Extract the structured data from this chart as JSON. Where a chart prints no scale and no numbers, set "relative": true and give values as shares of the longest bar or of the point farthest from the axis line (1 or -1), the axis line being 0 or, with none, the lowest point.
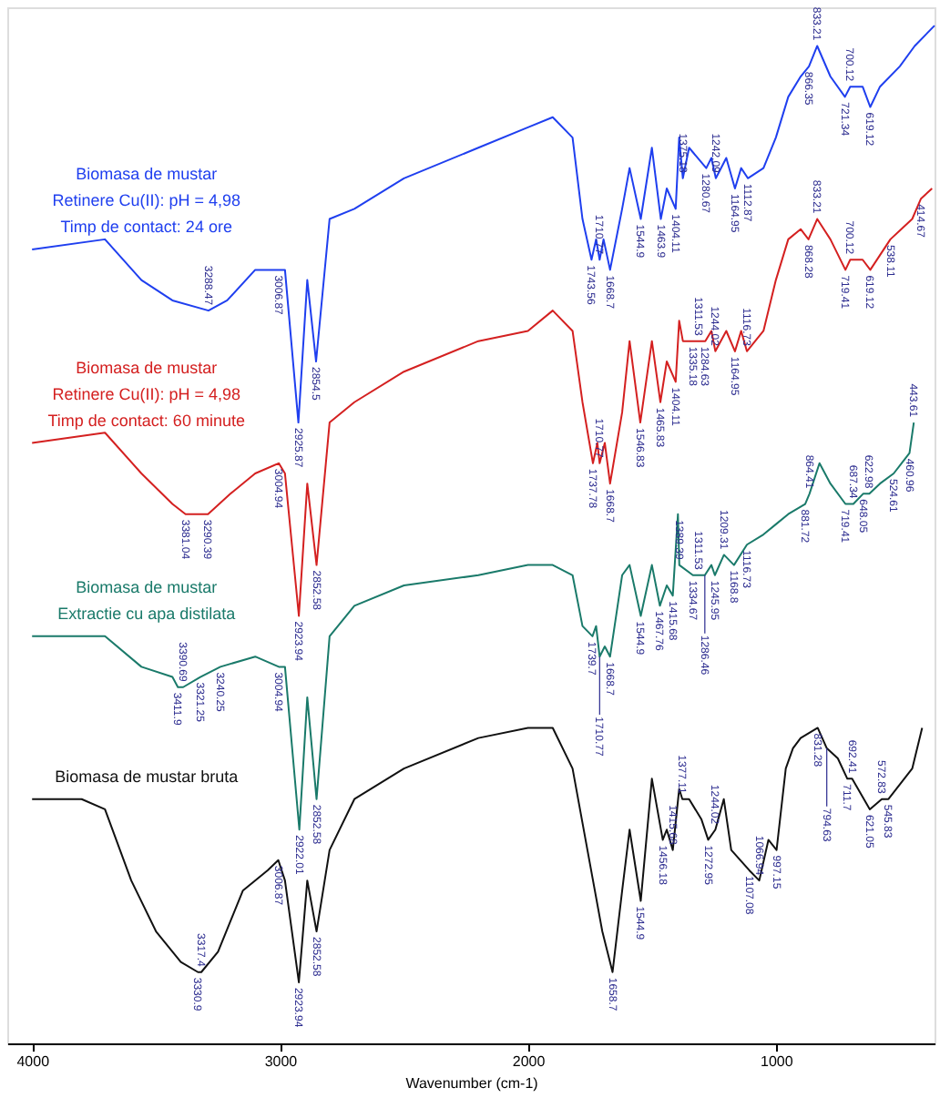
{
  "chart_data": {
    "type": "line",
    "relative": true,
    "xlabel": "Wavenumber (cm-1)",
    "xlim": [
      4100,
      360
    ],
    "xticks": [
      4000,
      3000,
      2000,
      1000
    ],
    "grid": false,
    "legend": false,
    "marker": "none",
    "line_style": "solid",
    "series": [
      {
        "name": "Biomasa de mustar\nRetinere Cu(II): pH = 4,98\nTimp de contact: 24 ore",
        "color": "#1f3fef",
        "x": [
          4000,
          3706,
          3559,
          3434,
          3288.47,
          3213,
          3100,
          3006.87,
          2980,
          2925.87,
          2890,
          2854.5,
          2800,
          2700,
          2500,
          2200,
          2000,
          1900,
          1820,
          1780,
          1743.56,
          1725,
          1710.77,
          1695,
          1668.7,
          1620,
          1590,
          1544.9,
          1500,
          1463.9,
          1440,
          1404.11,
          1390,
          1375.18,
          1350,
          1280.67,
          1260,
          1242.09,
          1200,
          1164.95,
          1140,
          1112.87,
          1050,
          1000,
          950,
          900,
          866.35,
          833.21,
          780,
          721.34,
          700.12,
          650,
          619.12,
          580,
          500,
          440,
          360
        ],
        "values": [
          0.78,
          0.79,
          0.75,
          0.73,
          0.72,
          0.73,
          0.76,
          0.76,
          0.76,
          0.61,
          0.75,
          0.67,
          0.81,
          0.82,
          0.85,
          0.88,
          0.9,
          0.91,
          0.89,
          0.81,
          0.77,
          0.79,
          0.77,
          0.79,
          0.76,
          0.82,
          0.86,
          0.81,
          0.88,
          0.81,
          0.84,
          0.82,
          0.89,
          0.85,
          0.88,
          0.86,
          0.87,
          0.85,
          0.87,
          0.84,
          0.86,
          0.85,
          0.86,
          0.89,
          0.93,
          0.95,
          0.96,
          0.98,
          0.95,
          0.93,
          0.94,
          0.94,
          0.92,
          0.94,
          0.96,
          0.98,
          1.0
        ]
      },
      {
        "name": "Biomasa de mustar\nRetinere Cu(II): pH = 4,98\nTimp de contact: 60 minute",
        "color": "#d42020",
        "x": [
          4000,
          3706,
          3559,
          3434,
          3381.04,
          3290.39,
          3200,
          3100,
          3004.94,
          2980,
          2923.94,
          2890,
          2852.58,
          2800,
          2700,
          2500,
          2200,
          2000,
          1900,
          1820,
          1780,
          1737.78,
          1720,
          1710.77,
          1690,
          1668.7,
          1620,
          1590,
          1546.83,
          1500,
          1465.83,
          1440,
          1404.11,
          1390,
          1375,
          1335.18,
          1311.53,
          1284.63,
          1260,
          1244.02,
          1200,
          1164.95,
          1140,
          1116.73,
          1050,
          1000,
          950,
          900,
          868.28,
          833.21,
          780,
          719.41,
          700.12,
          650,
          619.12,
          538.11,
          450,
          414.67,
          370
        ],
        "values": [
          0.59,
          0.6,
          0.56,
          0.53,
          0.52,
          0.52,
          0.54,
          0.56,
          0.57,
          0.56,
          0.42,
          0.55,
          0.47,
          0.61,
          0.63,
          0.66,
          0.69,
          0.7,
          0.72,
          0.7,
          0.63,
          0.57,
          0.59,
          0.57,
          0.59,
          0.55,
          0.62,
          0.69,
          0.61,
          0.69,
          0.63,
          0.67,
          0.65,
          0.71,
          0.69,
          0.69,
          0.69,
          0.69,
          0.7,
          0.68,
          0.7,
          0.68,
          0.7,
          0.68,
          0.7,
          0.75,
          0.79,
          0.8,
          0.79,
          0.81,
          0.79,
          0.76,
          0.77,
          0.77,
          0.76,
          0.79,
          0.81,
          0.83,
          0.84
        ]
      },
      {
        "name": "Biomasa de mustar\nExtractie cu apa distilata",
        "color": "#1a7a6a",
        "x": [
          4000,
          3706,
          3559,
          3434,
          3411.9,
          3390.69,
          3321.25,
          3240.25,
          3100,
          3004.94,
          2980,
          2922.01,
          2890,
          2852.58,
          2800,
          2700,
          2500,
          2200,
          2000,
          1900,
          1820,
          1780,
          1739.7,
          1725,
          1710.77,
          1690,
          1668.7,
          1620,
          1590,
          1544.9,
          1500,
          1467.76,
          1440,
          1415.68,
          1395,
          1389.39,
          1334.67,
          1311.53,
          1286.46,
          1260,
          1245.95,
          1209.31,
          1168.8,
          1116.73,
          1050,
          1000,
          950,
          881.72,
          864.41,
          824,
          780,
          719.41,
          687.34,
          648.05,
          622.98,
          580,
          524.61,
          460.96,
          443.61
        ],
        "values": [
          0.4,
          0.4,
          0.37,
          0.36,
          0.35,
          0.35,
          0.36,
          0.37,
          0.38,
          0.37,
          0.37,
          0.21,
          0.34,
          0.24,
          0.4,
          0.43,
          0.45,
          0.46,
          0.47,
          0.47,
          0.46,
          0.41,
          0.4,
          0.41,
          0.38,
          0.39,
          0.38,
          0.46,
          0.47,
          0.42,
          0.47,
          0.43,
          0.45,
          0.44,
          0.52,
          0.47,
          0.46,
          0.46,
          0.46,
          0.47,
          0.46,
          0.48,
          0.47,
          0.49,
          0.5,
          0.51,
          0.52,
          0.53,
          0.54,
          0.57,
          0.55,
          0.53,
          0.53,
          0.54,
          0.54,
          0.55,
          0.56,
          0.58,
          0.61
        ]
      },
      {
        "name": "Biomasa de mustar bruta",
        "color": "#111111",
        "x": [
          4000,
          3800,
          3706,
          3600,
          3500,
          3400,
          3330.9,
          3317.4,
          3250,
          3150,
          3050,
          3006.87,
          2980,
          2923.94,
          2890,
          2852.58,
          2800,
          2700,
          2500,
          2200,
          2000,
          1900,
          1820,
          1760,
          1700,
          1658.7,
          1620,
          1590,
          1544.9,
          1500,
          1456.18,
          1440,
          1415.68,
          1390,
          1377.11,
          1350,
          1300,
          1272.95,
          1244.02,
          1210,
          1180,
          1107.08,
          1066.94,
          1030,
          997.15,
          960,
          931,
          900,
          831.28,
          794.63,
          750,
          711.7,
          692.41,
          621.05,
          572.83,
          545.83,
          450,
          410
        ],
        "values": [
          0.24,
          0.24,
          0.23,
          0.16,
          0.11,
          0.08,
          0.07,
          0.07,
          0.09,
          0.15,
          0.17,
          0.18,
          0.16,
          0.06,
          0.16,
          0.11,
          0.19,
          0.24,
          0.27,
          0.3,
          0.31,
          0.31,
          0.27,
          0.19,
          0.11,
          0.07,
          0.15,
          0.21,
          0.14,
          0.26,
          0.2,
          0.21,
          0.19,
          0.25,
          0.24,
          0.24,
          0.22,
          0.2,
          0.21,
          0.24,
          0.19,
          0.17,
          0.16,
          0.2,
          0.19,
          0.27,
          0.29,
          0.3,
          0.31,
          0.29,
          0.28,
          0.26,
          0.26,
          0.23,
          0.24,
          0.24,
          0.27,
          0.31
        ]
      }
    ],
    "annotations": [
      {
        "text": "3288.47",
        "x": 3288.47,
        "y": 0.72
      },
      {
        "text": "3006.87",
        "x": 3006.87,
        "y": 0.76
      },
      {
        "text": "2925.87",
        "x": 2925.87,
        "y": 0.61
      },
      {
        "text": "2854.5",
        "x": 2854.5,
        "y": 0.67
      },
      {
        "text": "1743.56",
        "x": 1743.56,
        "y": 0.77
      },
      {
        "text": "1710.77",
        "x": 1710.77,
        "y": 0.77
      },
      {
        "text": "1668.7",
        "x": 1668.7,
        "y": 0.76
      },
      {
        "text": "1544.9",
        "x": 1544.9,
        "y": 0.81
      },
      {
        "text": "1463.9",
        "x": 1463.9,
        "y": 0.81
      },
      {
        "text": "1404.11",
        "x": 1404.11,
        "y": 0.82
      },
      {
        "text": "1375.18",
        "x": 1375.18,
        "y": 0.85
      },
      {
        "text": "1280.67",
        "x": 1280.67,
        "y": 0.86
      },
      {
        "text": "1242.09",
        "x": 1242.09,
        "y": 0.85
      },
      {
        "text": "1164.95",
        "x": 1164.95,
        "y": 0.84
      },
      {
        "text": "1112.87",
        "x": 1112.87,
        "y": 0.85
      },
      {
        "text": "866.35",
        "x": 866.35,
        "y": 0.96
      },
      {
        "text": "833.21",
        "x": 833.21,
        "y": 0.98
      },
      {
        "text": "721.34",
        "x": 721.34,
        "y": 0.93
      },
      {
        "text": "700.12",
        "x": 700.12,
        "y": 0.94
      },
      {
        "text": "619.12",
        "x": 619.12,
        "y": 0.92
      },
      {
        "text": "3381.04",
        "x": 3381.04,
        "y": 0.52
      },
      {
        "text": "3290.39",
        "x": 3290.39,
        "y": 0.52
      },
      {
        "text": "3004.94",
        "x": 3004.94,
        "y": 0.57
      },
      {
        "text": "2923.94",
        "x": 2923.94,
        "y": 0.42
      },
      {
        "text": "2852.58",
        "x": 2852.58,
        "y": 0.47
      },
      {
        "text": "1737.78",
        "x": 1737.78,
        "y": 0.57
      },
      {
        "text": "1710.77",
        "x": 1710.77,
        "y": 0.57
      },
      {
        "text": "1668.7",
        "x": 1668.7,
        "y": 0.55
      },
      {
        "text": "1546.83",
        "x": 1546.83,
        "y": 0.61
      },
      {
        "text": "1465.83",
        "x": 1465.83,
        "y": 0.63
      },
      {
        "text": "1404.11",
        "x": 1404.11,
        "y": 0.65
      },
      {
        "text": "1335.18",
        "x": 1335.18,
        "y": 0.69
      },
      {
        "text": "1311.53",
        "x": 1311.53,
        "y": 0.69
      },
      {
        "text": "1284.63",
        "x": 1284.63,
        "y": 0.69
      },
      {
        "text": "1244.02",
        "x": 1244.02,
        "y": 0.68
      },
      {
        "text": "1164.95",
        "x": 1164.95,
        "y": 0.68
      },
      {
        "text": "1116.73",
        "x": 1116.73,
        "y": 0.68
      },
      {
        "text": "868.28",
        "x": 868.28,
        "y": 0.79
      },
      {
        "text": "833.21",
        "x": 833.21,
        "y": 0.81
      },
      {
        "text": "719.41",
        "x": 719.41,
        "y": 0.76
      },
      {
        "text": "700.12",
        "x": 700.12,
        "y": 0.77
      },
      {
        "text": "619.12",
        "x": 619.12,
        "y": 0.76
      },
      {
        "text": "538.11",
        "x": 538.11,
        "y": 0.79
      },
      {
        "text": "414.67",
        "x": 414.67,
        "y": 0.83
      },
      {
        "text": "3411.9",
        "x": 3411.9,
        "y": 0.35
      },
      {
        "text": "3390.69",
        "x": 3390.69,
        "y": 0.35
      },
      {
        "text": "3321.25",
        "x": 3321.25,
        "y": 0.36
      },
      {
        "text": "3240.25",
        "x": 3240.25,
        "y": 0.37
      },
      {
        "text": "3004.94",
        "x": 3004.94,
        "y": 0.37
      },
      {
        "text": "2922.01",
        "x": 2922.01,
        "y": 0.21
      },
      {
        "text": "2852.58",
        "x": 2852.58,
        "y": 0.24
      },
      {
        "text": "1739.7",
        "x": 1739.7,
        "y": 0.4
      },
      {
        "text": "1710.77",
        "x": 1710.77,
        "y": 0.38
      },
      {
        "text": "1668.7",
        "x": 1668.7,
        "y": 0.38
      },
      {
        "text": "1544.9",
        "x": 1544.9,
        "y": 0.42
      },
      {
        "text": "1467.76",
        "x": 1467.76,
        "y": 0.43
      },
      {
        "text": "1415.68",
        "x": 1415.68,
        "y": 0.44
      },
      {
        "text": "1389.39",
        "x": 1389.39,
        "y": 0.47
      },
      {
        "text": "1334.67",
        "x": 1334.67,
        "y": 0.46
      },
      {
        "text": "1311.53",
        "x": 1311.53,
        "y": 0.46
      },
      {
        "text": "1286.46",
        "x": 1286.46,
        "y": 0.46
      },
      {
        "text": "1245.95",
        "x": 1245.95,
        "y": 0.46
      },
      {
        "text": "1209.31",
        "x": 1209.31,
        "y": 0.48
      },
      {
        "text": "1168.8",
        "x": 1168.8,
        "y": 0.47
      },
      {
        "text": "1116.73",
        "x": 1116.73,
        "y": 0.49
      },
      {
        "text": "881.72",
        "x": 881.72,
        "y": 0.53
      },
      {
        "text": "864.41",
        "x": 864.41,
        "y": 0.54
      },
      {
        "text": "719.41",
        "x": 719.41,
        "y": 0.53
      },
      {
        "text": "687.34",
        "x": 687.34,
        "y": 0.53
      },
      {
        "text": "648.05",
        "x": 648.05,
        "y": 0.54
      },
      {
        "text": "622.98",
        "x": 622.98,
        "y": 0.54
      },
      {
        "text": "524.61",
        "x": 524.61,
        "y": 0.56
      },
      {
        "text": "460.96",
        "x": 460.96,
        "y": 0.58
      },
      {
        "text": "443.61",
        "x": 443.61,
        "y": 0.61
      },
      {
        "text": "3330.9",
        "x": 3330.9,
        "y": 0.07
      },
      {
        "text": "3317.4",
        "x": 3317.4,
        "y": 0.07
      },
      {
        "text": "3006.87",
        "x": 3006.87,
        "y": 0.18
      },
      {
        "text": "2923.94",
        "x": 2923.94,
        "y": 0.06
      },
      {
        "text": "2852.58",
        "x": 2852.58,
        "y": 0.11
      },
      {
        "text": "1658.7",
        "x": 1658.7,
        "y": 0.07
      },
      {
        "text": "1544.9",
        "x": 1544.9,
        "y": 0.14
      },
      {
        "text": "1456.18",
        "x": 1456.18,
        "y": 0.2
      },
      {
        "text": "1415.68",
        "x": 1415.68,
        "y": 0.19
      },
      {
        "text": "1377.11",
        "x": 1377.11,
        "y": 0.24
      },
      {
        "text": "1272.95",
        "x": 1272.95,
        "y": 0.2
      },
      {
        "text": "1244.02",
        "x": 1244.02,
        "y": 0.21
      },
      {
        "text": "1107.08",
        "x": 1107.08,
        "y": 0.17
      },
      {
        "text": "1066.94",
        "x": 1066.94,
        "y": 0.16
      },
      {
        "text": "997.15",
        "x": 997.15,
        "y": 0.19
      },
      {
        "text": "831.28",
        "x": 831.28,
        "y": 0.31
      },
      {
        "text": "794.63",
        "x": 794.63,
        "y": 0.29
      },
      {
        "text": "711.7",
        "x": 711.7,
        "y": 0.26
      },
      {
        "text": "692.41",
        "x": 692.41,
        "y": 0.26
      },
      {
        "text": "621.05",
        "x": 621.05,
        "y": 0.23
      },
      {
        "text": "572.83",
        "x": 572.83,
        "y": 0.24
      },
      {
        "text": "545.83",
        "x": 545.83,
        "y": 0.24
      }
    ]
  }
}
